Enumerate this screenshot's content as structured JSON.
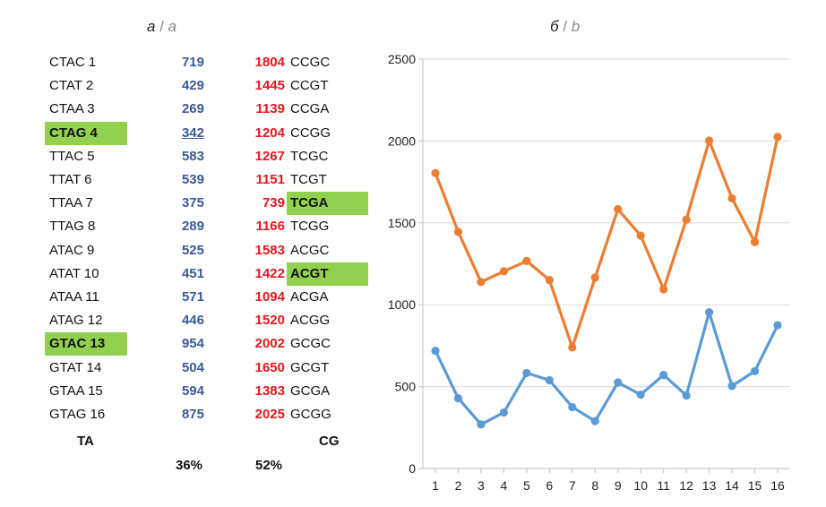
{
  "titles": {
    "a": {
      "main": "a",
      "sep": "/",
      "alt": "a"
    },
    "b": {
      "main": "б",
      "sep": "/",
      "alt": "b"
    }
  },
  "table": {
    "rows": [
      {
        "ta": "CTAC  1",
        "ta_val": "719",
        "cg_val": "1804",
        "cg": "CCGC"
      },
      {
        "ta": "CTAT  2",
        "ta_val": "429",
        "cg_val": "1445",
        "cg": "CCGT"
      },
      {
        "ta": "CTAA  3",
        "ta_val": "269",
        "cg_val": "1139",
        "cg": "CCGA"
      },
      {
        "ta": "CTAG  4",
        "ta_val": "342",
        "cg_val": "1204",
        "cg": "CCGG",
        "ta_highlight": true,
        "ta_val_underline": true
      },
      {
        "ta": "TTAC  5",
        "ta_val": "583",
        "cg_val": "1267",
        "cg": "TCGC"
      },
      {
        "ta": "TTAT  6",
        "ta_val": "539",
        "cg_val": "1151",
        "cg": "TCGT"
      },
      {
        "ta": "TTAA  7",
        "ta_val": "375",
        "cg_val": "739",
        "cg": "TCGA",
        "cg_highlight": true
      },
      {
        "ta": "TTAG  8",
        "ta_val": "289",
        "cg_val": "1166",
        "cg": "TCGG"
      },
      {
        "ta": "ATAC  9",
        "ta_val": "525",
        "cg_val": "1583",
        "cg": "ACGC"
      },
      {
        "ta": "ATAT 10",
        "ta_val": "451",
        "cg_val": "1422",
        "cg": "ACGT",
        "cg_highlight": true
      },
      {
        "ta": "ATAA 11",
        "ta_val": "571",
        "cg_val": "1094",
        "cg": "ACGA"
      },
      {
        "ta": "ATAG 12",
        "ta_val": "446",
        "cg_val": "1520",
        "cg": "ACGG"
      },
      {
        "ta": "GTAC 13",
        "ta_val": "954",
        "cg_val": "2002",
        "cg": "GCGC",
        "ta_highlight": true
      },
      {
        "ta": "GTAT 14",
        "ta_val": "504",
        "cg_val": "1650",
        "cg": "GCGT"
      },
      {
        "ta": "GTAA 15",
        "ta_val": "594",
        "cg_val": "1383",
        "cg": "GCGA"
      },
      {
        "ta": "GTAG 16",
        "ta_val": "875",
        "cg_val": "2025",
        "cg": "GCGG"
      }
    ],
    "footer": {
      "ta_label": "TA",
      "cg_label": "CG",
      "ta_pct": "36%",
      "cg_pct": "52%"
    },
    "colors": {
      "ta_values": "#3a5a99",
      "cg_values": "#e8161e",
      "highlight": "#92d050"
    }
  },
  "chart_data": {
    "type": "line",
    "x": [
      1,
      2,
      3,
      4,
      5,
      6,
      7,
      8,
      9,
      10,
      11,
      12,
      13,
      14,
      15,
      16
    ],
    "series": [
      {
        "color": "#ed7d31",
        "values": [
          1804,
          1445,
          1139,
          1204,
          1267,
          1151,
          739,
          1166,
          1583,
          1422,
          1094,
          1520,
          2002,
          1650,
          1383,
          2025
        ]
      },
      {
        "color": "#5b9bd5",
        "values": [
          719,
          429,
          269,
          342,
          583,
          539,
          375,
          289,
          525,
          451,
          571,
          446,
          954,
          504,
          594,
          875
        ]
      }
    ],
    "ylim": [
      0,
      2500
    ],
    "yticks": [
      0,
      500,
      1000,
      1500,
      2000,
      2500
    ],
    "grid": true,
    "legend": "none",
    "title": "",
    "xlabel": "",
    "ylabel": ""
  }
}
